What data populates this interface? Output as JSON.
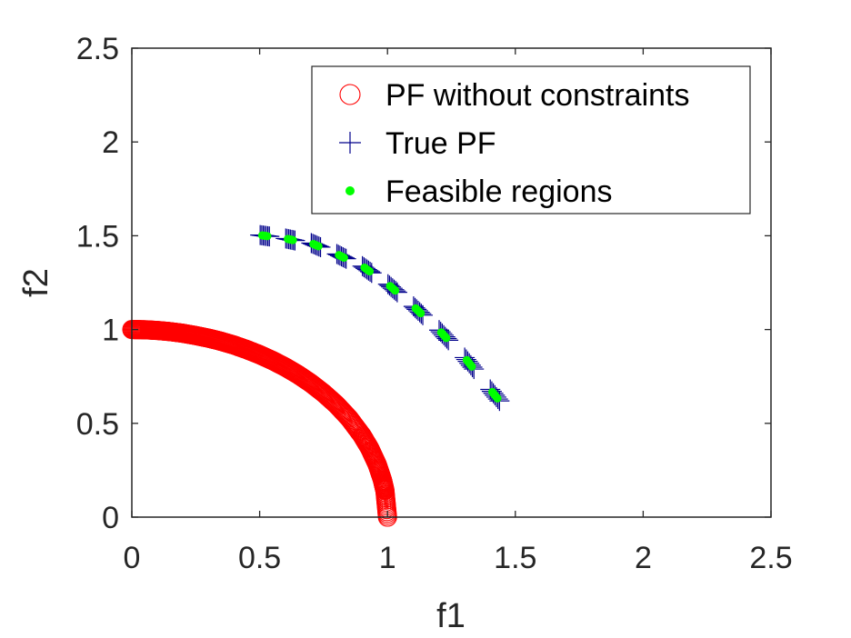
{
  "chart_data": {
    "type": "scatter",
    "title": "",
    "xlabel": "f1",
    "ylabel": "f2",
    "xlim": [
      0,
      2.5
    ],
    "ylim": [
      0,
      2.5
    ],
    "xticks": [
      "0",
      "0.5",
      "1",
      "1.5",
      "2",
      "2.5"
    ],
    "yticks": [
      "0",
      "0.5",
      "1",
      "1.5",
      "2",
      "2.5"
    ],
    "grid": false,
    "legend_position": "top-right",
    "series": [
      {
        "name": "PF without constraints",
        "marker": "circle",
        "color": "#ff0000",
        "x": [
          0.0,
          0.05,
          0.1,
          0.15,
          0.2,
          0.25,
          0.3,
          0.35,
          0.4,
          0.45,
          0.5,
          0.55,
          0.6,
          0.65,
          0.7,
          0.75,
          0.8,
          0.85,
          0.9,
          0.93,
          0.96,
          0.98,
          0.99,
          1.0
        ],
        "y": [
          1.0,
          0.999,
          0.995,
          0.989,
          0.98,
          0.968,
          0.954,
          0.937,
          0.917,
          0.893,
          0.866,
          0.835,
          0.8,
          0.76,
          0.714,
          0.661,
          0.6,
          0.527,
          0.436,
          0.368,
          0.28,
          0.199,
          0.141,
          0.0
        ]
      },
      {
        "name": "True PF",
        "marker": "plus",
        "color": "#00008b",
        "x": [
          0.52,
          0.62,
          0.72,
          0.82,
          0.92,
          1.02,
          1.12,
          1.22,
          1.32,
          1.42
        ],
        "y": [
          1.5,
          1.48,
          1.45,
          1.39,
          1.32,
          1.22,
          1.1,
          0.97,
          0.82,
          0.65
        ]
      },
      {
        "name": "Feasible regions",
        "marker": "dot",
        "color": "#00ff00",
        "x": [
          0.52,
          0.62,
          0.72,
          0.82,
          0.92,
          1.02,
          1.12,
          1.22,
          1.32,
          1.42
        ],
        "y": [
          1.5,
          1.48,
          1.45,
          1.39,
          1.32,
          1.22,
          1.1,
          0.97,
          0.82,
          0.65
        ]
      }
    ]
  }
}
